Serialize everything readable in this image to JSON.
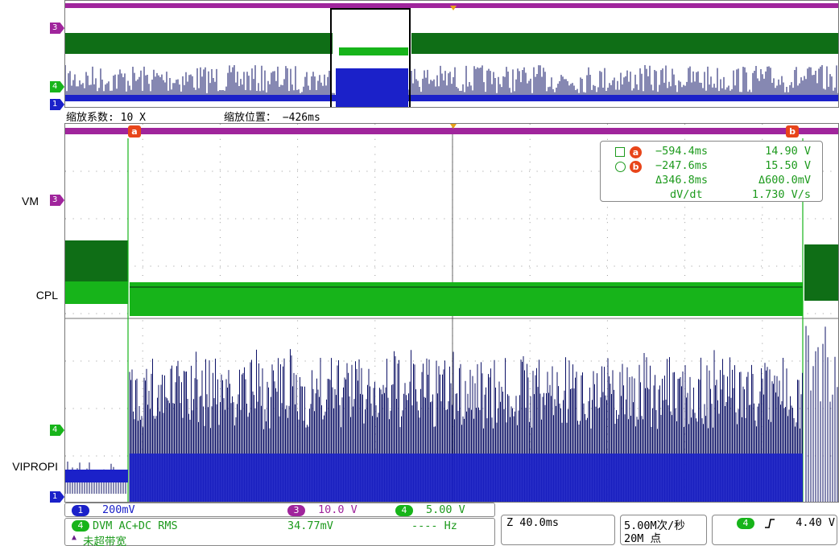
{
  "colors": {
    "ch1": "#1b21c9",
    "ch1_dark": "#0c1166",
    "ch3": "#a0259c",
    "ch4": "#17b41a",
    "ch4_dark": "#0f6e16",
    "cursor": "#e8451a",
    "text_green": "#1d9a1d"
  },
  "overview": {
    "markers": [
      "3",
      "4",
      "1"
    ]
  },
  "zoom": {
    "factor_label": "缩放系数: 10 X",
    "position_label": "缩放位置： −426ms"
  },
  "side_labels": {
    "vm": "VM",
    "cpl": "CPL",
    "vipropi": "VIPROPI"
  },
  "markers": {
    "ch3": "3",
    "ch4": "4",
    "ch1": "1"
  },
  "cursors": {
    "a_label": "a",
    "b_label": "b"
  },
  "readout": {
    "a_time": "−594.4ms",
    "a_value": "14.90 V",
    "b_time": "−247.6ms",
    "b_value": "15.50 V",
    "delta_time": "Δ346.8ms",
    "delta_value": "Δ600.0mV",
    "dvdt_label": "dV/dt",
    "dvdt_value": "1.730 V/s"
  },
  "channels": {
    "ch1_num": "1",
    "ch1_scale": "200mV",
    "ch3_num": "3",
    "ch3_scale": "10.0 V",
    "ch4_num": "4",
    "ch4_scale": "5.00 V"
  },
  "measurement": {
    "ch_num": "4",
    "label": "DVM AC+DC RMS",
    "value": "34.77mV",
    "freq": "---- Hz",
    "bandwidth": "未超带宽"
  },
  "timebase": {
    "zoom_scale": "Z 40.0ms",
    "sample_rate": "5.00M次/秒",
    "record_length": "20M 点"
  },
  "trigger": {
    "ch_num": "4",
    "slope_icon": "rising-edge",
    "level": "4.40 V"
  }
}
